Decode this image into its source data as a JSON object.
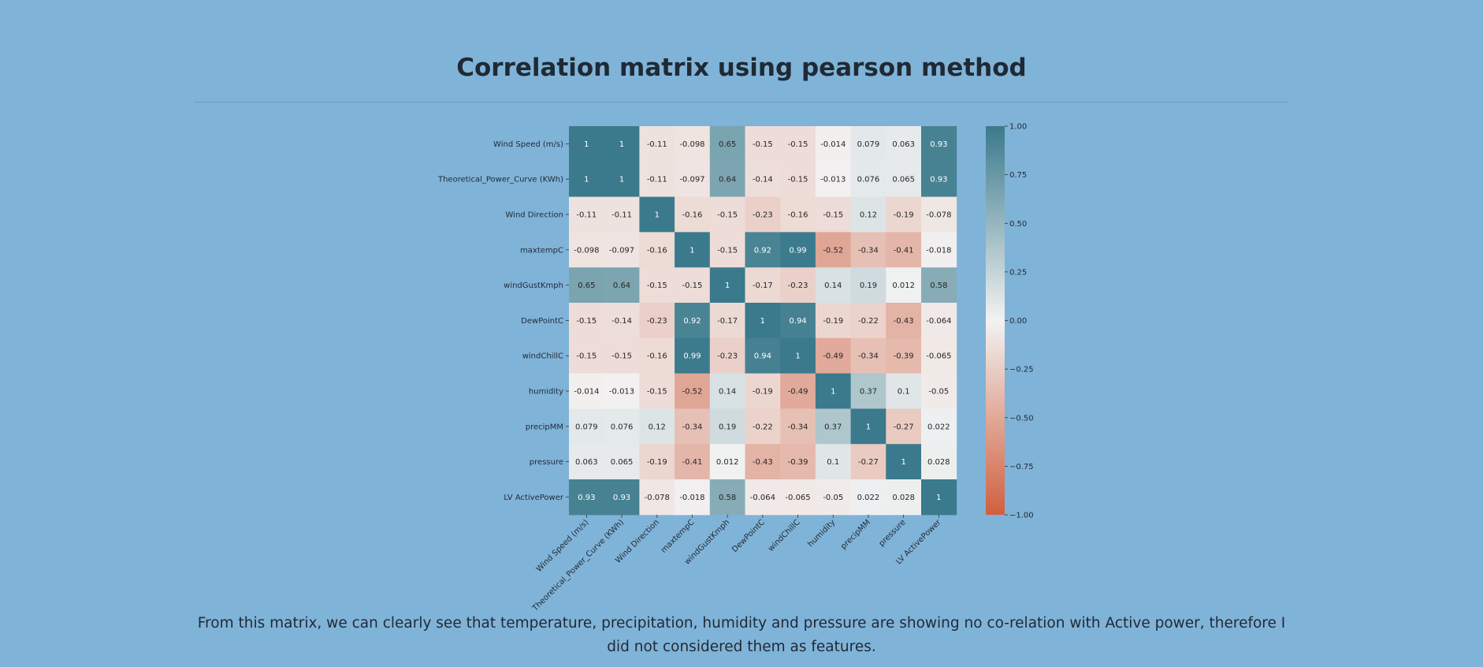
{
  "page": {
    "title": "Correlation matrix using pearson method",
    "caption": "From this matrix, we can clearly see that temperature, precipitation, humidity and pressure are showing no co-relation with Active power, therefore I did not considered them as features."
  },
  "chart_data": {
    "type": "heatmap",
    "title": "",
    "xlabel": "",
    "ylabel": "",
    "labels": [
      "Wind Speed (m/s)",
      "Theoretical_Power_Curve (KWh)",
      "Wind Direction",
      "maxtempC",
      "windGustKmph",
      "DewPointC",
      "windChillC",
      "humidity",
      "precipMM",
      "pressure",
      "LV ActivePower"
    ],
    "values": [
      [
        1,
        1,
        -0.11,
        -0.098,
        0.65,
        -0.15,
        -0.15,
        -0.014,
        0.079,
        0.063,
        0.93
      ],
      [
        1,
        1,
        -0.11,
        -0.097,
        0.64,
        -0.14,
        -0.15,
        -0.013,
        0.076,
        0.065,
        0.93
      ],
      [
        -0.11,
        -0.11,
        1,
        -0.16,
        -0.15,
        -0.23,
        -0.16,
        -0.15,
        0.12,
        -0.19,
        -0.078
      ],
      [
        -0.098,
        -0.097,
        -0.16,
        1,
        -0.15,
        0.92,
        0.99,
        -0.52,
        -0.34,
        -0.41,
        -0.018
      ],
      [
        0.65,
        0.64,
        -0.15,
        -0.15,
        1,
        -0.17,
        -0.23,
        0.14,
        0.19,
        0.012,
        0.58
      ],
      [
        -0.15,
        -0.14,
        -0.23,
        0.92,
        -0.17,
        1,
        0.94,
        -0.19,
        -0.22,
        -0.43,
        -0.064
      ],
      [
        -0.15,
        -0.15,
        -0.16,
        0.99,
        -0.23,
        0.94,
        1,
        -0.49,
        -0.34,
        -0.39,
        -0.065
      ],
      [
        -0.014,
        -0.013,
        -0.15,
        -0.52,
        0.14,
        -0.19,
        -0.49,
        1,
        0.37,
        0.1,
        -0.05
      ],
      [
        0.079,
        0.076,
        0.12,
        -0.34,
        0.19,
        -0.22,
        -0.34,
        0.37,
        1,
        -0.27,
        0.022
      ],
      [
        0.063,
        0.065,
        -0.19,
        -0.41,
        0.012,
        -0.43,
        -0.39,
        0.1,
        -0.27,
        1,
        0.028
      ],
      [
        0.93,
        0.93,
        -0.078,
        -0.018,
        0.58,
        -0.064,
        -0.065,
        -0.05,
        0.022,
        0.028,
        1
      ]
    ],
    "colorbar": {
      "ticks": [
        "1.00",
        "0.75",
        "0.50",
        "0.25",
        "0.00",
        "−0.25",
        "−0.50",
        "−0.75",
        "−1.00"
      ],
      "range": [
        -1,
        1
      ],
      "low_color": "#d0603f",
      "mid_color": "#f2f2f2",
      "high_color": "#3a7a8c"
    },
    "grid": false,
    "legend": "colorbar-right"
  }
}
